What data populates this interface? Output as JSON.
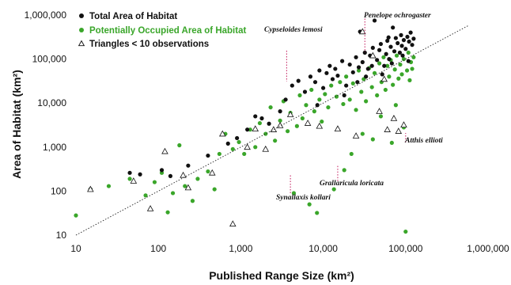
{
  "chart_data": {
    "type": "scatter",
    "title": "",
    "xlabel": "Published Range Size (km²)",
    "ylabel": "Area of Habitat (km²)",
    "x_scale": "log",
    "y_scale": "log",
    "xlim": [
      10,
      1000000
    ],
    "ylim": [
      10,
      1000000
    ],
    "x_ticks": [
      "10",
      "100",
      "1,000",
      "10,000",
      "100,000",
      "1,000,000"
    ],
    "y_ticks": [
      "10",
      "100",
      "1,000",
      "10,000",
      "100,000",
      "1,000,000"
    ],
    "grid": false,
    "legend_position": "top-left",
    "reference_line": "1:1 dotted line",
    "series": [
      {
        "name": "Total Area of Habitat",
        "color": "#111111",
        "marker": "circle",
        "points": [
          [
            15,
            110
          ],
          [
            45,
            260
          ],
          [
            60,
            240
          ],
          [
            110,
            300
          ],
          [
            140,
            220
          ],
          [
            230,
            380
          ],
          [
            400,
            640
          ],
          [
            700,
            1200
          ],
          [
            900,
            1600
          ],
          [
            1200,
            2500
          ],
          [
            1500,
            5000
          ],
          [
            1800,
            4500
          ],
          [
            2200,
            3400
          ],
          [
            3000,
            6500
          ],
          [
            3500,
            12000
          ],
          [
            4200,
            25000
          ],
          [
            5000,
            32000
          ],
          [
            6000,
            18000
          ],
          [
            7000,
            40000
          ],
          [
            8000,
            30000
          ],
          [
            9000,
            55000
          ],
          [
            10000,
            22000
          ],
          [
            11000,
            48000
          ],
          [
            12000,
            70000
          ],
          [
            13000,
            35000
          ],
          [
            14000,
            60000
          ],
          [
            15000,
            42000
          ],
          [
            17000,
            90000
          ],
          [
            19000,
            25000
          ],
          [
            21000,
            75000
          ],
          [
            23000,
            50000
          ],
          [
            25000,
            110000
          ],
          [
            27000,
            65000
          ],
          [
            28000,
            420000
          ],
          [
            30000,
            85000
          ],
          [
            32000,
            140000
          ],
          [
            35000,
            60000
          ],
          [
            37000,
            120000
          ],
          [
            40000,
            180000
          ],
          [
            42000,
            750000
          ],
          [
            45000,
            95000
          ],
          [
            48000,
            160000
          ],
          [
            50000,
            220000
          ],
          [
            55000,
            70000
          ],
          [
            58000,
            130000
          ],
          [
            60000,
            260000
          ],
          [
            63000,
            100000
          ],
          [
            66000,
            190000
          ],
          [
            70000,
            520000
          ],
          [
            73000,
            150000
          ],
          [
            76000,
            300000
          ],
          [
            80000,
            230000
          ],
          [
            85000,
            140000
          ],
          [
            88000,
            350000
          ],
          [
            90000,
            200000
          ],
          [
            95000,
            270000
          ],
          [
            100000,
            170000
          ],
          [
            105000,
            320000
          ],
          [
            110000,
            250000
          ],
          [
            115000,
            400000
          ],
          [
            120000,
            210000
          ],
          [
            125000,
            290000
          ],
          [
            33000,
            40000
          ],
          [
            18000,
            15000
          ],
          [
            8500,
            9000
          ],
          [
            26000,
            30000
          ],
          [
            52000,
            45000
          ],
          [
            68000,
            80000
          ],
          [
            92000,
            120000
          ],
          [
            108000,
            90000
          ],
          [
            62000,
            310000
          ],
          [
            39000,
            70000
          ]
        ]
      },
      {
        "name": "Potentially Occupied Area of Habitat",
        "color": "#3aa62a",
        "marker": "circle",
        "points": [
          [
            10,
            28
          ],
          [
            15,
            110
          ],
          [
            25,
            130
          ],
          [
            45,
            190
          ],
          [
            70,
            80
          ],
          [
            90,
            160
          ],
          [
            110,
            260
          ],
          [
            130,
            33
          ],
          [
            150,
            90
          ],
          [
            180,
            1100
          ],
          [
            210,
            130
          ],
          [
            260,
            60
          ],
          [
            300,
            190
          ],
          [
            400,
            280
          ],
          [
            480,
            110
          ],
          [
            550,
            700
          ],
          [
            650,
            2000
          ],
          [
            800,
            900
          ],
          [
            950,
            1300
          ],
          [
            1100,
            700
          ],
          [
            1300,
            2500
          ],
          [
            1500,
            1000
          ],
          [
            1700,
            3500
          ],
          [
            2000,
            2000
          ],
          [
            2300,
            8000
          ],
          [
            2600,
            1400
          ],
          [
            3000,
            4000
          ],
          [
            3300,
            11000
          ],
          [
            3700,
            2300
          ],
          [
            4000,
            6000
          ],
          [
            4400,
            90
          ],
          [
            4800,
            3000
          ],
          [
            5200,
            15000
          ],
          [
            5600,
            4500
          ],
          [
            6200,
            9000
          ],
          [
            6800,
            50
          ],
          [
            7200,
            20000
          ],
          [
            7800,
            6500
          ],
          [
            8400,
            32
          ],
          [
            9000,
            12000
          ],
          [
            9600,
            3800
          ],
          [
            10500,
            16000
          ],
          [
            11500,
            8000
          ],
          [
            12500,
            25000
          ],
          [
            13500,
            110
          ],
          [
            14500,
            14000
          ],
          [
            16000,
            30000
          ],
          [
            17500,
            9500
          ],
          [
            19000,
            40000
          ],
          [
            21000,
            12000
          ],
          [
            23000,
            28000
          ],
          [
            25000,
            7000
          ],
          [
            27000,
            55000
          ],
          [
            29000,
            18000
          ],
          [
            31000,
            35000
          ],
          [
            33000,
            11000
          ],
          [
            36000,
            62000
          ],
          [
            39000,
            23000
          ],
          [
            42000,
            48000
          ],
          [
            45000,
            15000
          ],
          [
            48000,
            80000
          ],
          [
            51000,
            30000
          ],
          [
            54000,
            110000
          ],
          [
            57000,
            20000
          ],
          [
            60000,
            70000
          ],
          [
            63000,
            40000
          ],
          [
            66000,
            95000
          ],
          [
            70000,
            26000
          ],
          [
            74000,
            58000
          ],
          [
            78000,
            120000
          ],
          [
            82000,
            36000
          ],
          [
            86000,
            75000
          ],
          [
            90000,
            45000
          ],
          [
            95000,
            100000
          ],
          [
            100000,
            12
          ],
          [
            104000,
            55000
          ],
          [
            108000,
            140000
          ],
          [
            112000,
            33000
          ],
          [
            116000,
            85000
          ],
          [
            120000,
            60000
          ],
          [
            125000,
            110000
          ],
          [
            68000,
            1250
          ],
          [
            30000,
            2000
          ],
          [
            18000,
            300
          ],
          [
            50000,
            5000
          ],
          [
            76000,
            9000
          ],
          [
            95000,
            2800
          ],
          [
            22000,
            700
          ],
          [
            40000,
            1500
          ]
        ]
      },
      {
        "name": "Triangles < 10 observations",
        "color": "#111111",
        "marker": "triangle",
        "points": [
          [
            15,
            110
          ],
          [
            50,
            170
          ],
          [
            80,
            40
          ],
          [
            120,
            800
          ],
          [
            200,
            230
          ],
          [
            230,
            120
          ],
          [
            450,
            260
          ],
          [
            600,
            2000
          ],
          [
            800,
            18
          ],
          [
            1200,
            1000
          ],
          [
            1500,
            2600
          ],
          [
            2000,
            900
          ],
          [
            2500,
            2500
          ],
          [
            3000,
            3100
          ],
          [
            4000,
            5500
          ],
          [
            6500,
            3500
          ],
          [
            9000,
            3000
          ],
          [
            15000,
            2600
          ],
          [
            25000,
            1800
          ],
          [
            30000,
            420000
          ],
          [
            40000,
            120000
          ],
          [
            48000,
            6500
          ],
          [
            60000,
            2500
          ],
          [
            82000,
            2300
          ],
          [
            95000,
            3200
          ],
          [
            55000,
            35000
          ],
          [
            72000,
            4500
          ]
        ]
      }
    ],
    "annotations": [
      {
        "label": "Penelope ochrogaster",
        "x": 32000,
        "y": 830000
      },
      {
        "label": "Cypseloides lemosi",
        "x": 3600,
        "y": 155000
      },
      {
        "label": "Atthis ellioti",
        "x": 100000,
        "y": 1300
      },
      {
        "label": "Grallaricula loricata",
        "x": 15000,
        "y": 170
      },
      {
        "label": "Synallaxis kollari",
        "x": 4000,
        "y": 90
      }
    ]
  }
}
